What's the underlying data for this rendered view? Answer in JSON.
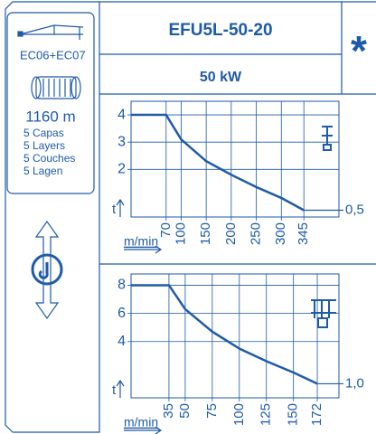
{
  "header": {
    "model": "EFU5L-50-20",
    "power": "50 kW",
    "mark": "*"
  },
  "sidebar": {
    "code": "EC06+EC07",
    "length": "1160 m",
    "layers": [
      "5 Capas",
      "5 Layers",
      "5 Couches",
      "5 Lagen"
    ]
  },
  "chart_data": [
    {
      "type": "line",
      "x_label": "m/min",
      "y_label": "t",
      "color": "#1e5aa8",
      "x": [
        0,
        70,
        100,
        150,
        200,
        250,
        300,
        345
      ],
      "values": [
        4,
        4,
        3.1,
        2.3,
        1.8,
        1.35,
        0.95,
        0.5
      ],
      "xlim": [
        0,
        415
      ],
      "ylim": [
        0.25,
        4.5
      ],
      "xticks": [
        70,
        100,
        150,
        200,
        250,
        300,
        345
      ],
      "yticks": [
        2,
        3,
        4
      ],
      "reference": {
        "value": 0.5,
        "label": "0,5"
      }
    },
    {
      "type": "line",
      "x_label": "m/min",
      "y_label": "t",
      "color": "#1e5aa8",
      "x": [
        0,
        35,
        50,
        75,
        100,
        125,
        150,
        172
      ],
      "values": [
        8,
        8,
        6.3,
        4.7,
        3.5,
        2.6,
        1.8,
        1
      ],
      "xlim": [
        0,
        192
      ],
      "ylim": [
        0,
        8.8
      ],
      "xticks": [
        35,
        50,
        75,
        100,
        125,
        150,
        172
      ],
      "yticks": [
        4,
        6,
        8
      ],
      "reference": {
        "value": 1,
        "label": "1,0"
      }
    }
  ]
}
